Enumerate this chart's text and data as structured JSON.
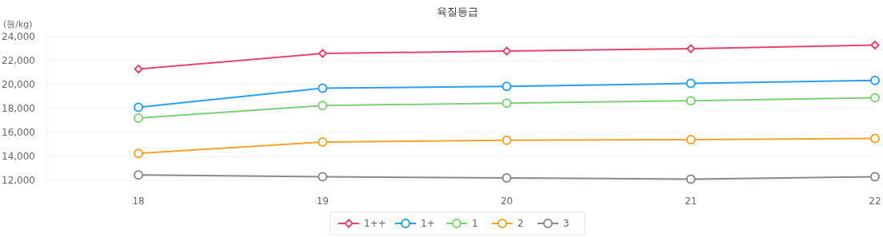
{
  "chart_data": {
    "type": "line",
    "title": "육질등급",
    "ylabel": "(원/kg)",
    "categories": [
      "18",
      "19",
      "20",
      "21",
      "22"
    ],
    "series": [
      {
        "name": "1++",
        "color": "#e8436e",
        "marker": "diamond",
        "values": [
          21300,
          22600,
          22800,
          23000,
          23300
        ]
      },
      {
        "name": "1+",
        "color": "#2a9ff0",
        "marker": "circle",
        "values": [
          18100,
          19700,
          19850,
          20100,
          20350
        ]
      },
      {
        "name": "1",
        "color": "#7dcf78",
        "marker": "circle",
        "values": [
          17200,
          18250,
          18450,
          18650,
          18900
        ]
      },
      {
        "name": "2",
        "color": "#f3a42a",
        "marker": "circle",
        "values": [
          14250,
          15200,
          15350,
          15400,
          15500
        ]
      },
      {
        "name": "3",
        "color": "#8a8a8a",
        "marker": "circle",
        "values": [
          12450,
          12300,
          12200,
          12100,
          12300
        ]
      }
    ],
    "ylim": [
      12000,
      24000
    ],
    "yticks": [
      {
        "value": 12000,
        "label": "12,000"
      },
      {
        "value": 14000,
        "label": "14,000"
      },
      {
        "value": 16000,
        "label": "16,000"
      },
      {
        "value": 18000,
        "label": "18,000"
      },
      {
        "value": 20000,
        "label": "20,000"
      },
      {
        "value": 22000,
        "label": "22,000"
      },
      {
        "value": 24000,
        "label": "24,000"
      }
    ],
    "grid": "y",
    "legend": "bottom",
    "line_style": "solid"
  }
}
